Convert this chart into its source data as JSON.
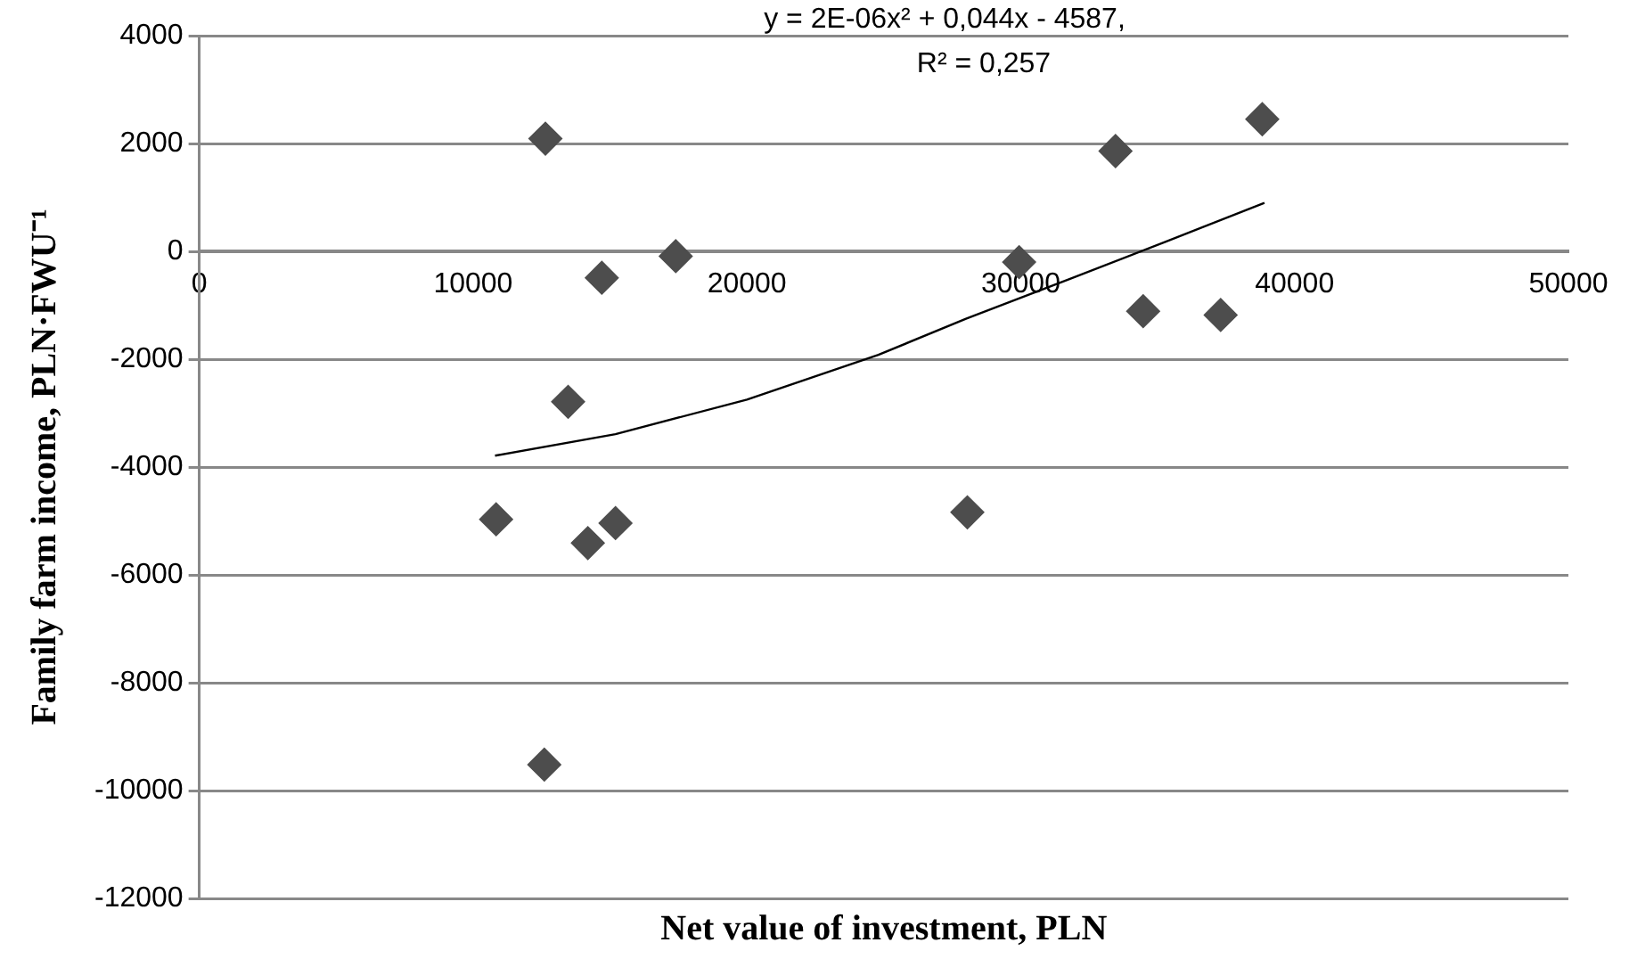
{
  "chart_data": {
    "type": "scatter",
    "xlabel": "Net value of investment, PLN",
    "ylabel": "Family farm income, PLN·FWU⁻¹",
    "annotations": [
      "y = 2E-06x² + 0,044x - 4587,",
      "R² = 0,257"
    ],
    "xlim": [
      0,
      50000
    ],
    "xticks": [
      0,
      10000,
      20000,
      30000,
      40000,
      50000
    ],
    "ylim": [
      -12000,
      4000
    ],
    "yticks": [
      -12000,
      -10000,
      -8000,
      -6000,
      -4000,
      -2000,
      0,
      2000,
      4000
    ],
    "grid": "y",
    "legend": false,
    "marker": "diamond",
    "series": [
      {
        "color": "#4d4d4d",
        "x": [
          12640,
          14700,
          17400,
          13470,
          10840,
          14190,
          15200,
          12600,
          28050,
          29940,
          33460,
          38820,
          34470,
          37300
        ],
        "values": [
          2090,
          -490,
          -90,
          -2790,
          -4970,
          -5410,
          -5040,
          -9520,
          -4840,
          -200,
          1860,
          2450,
          -1110,
          -1180
        ]
      },
      {
        "type": "line",
        "color": "#000000",
        "marker": "none",
        "x": [
          10800,
          15200,
          20000,
          24800,
          28000,
          31800,
          35300,
          38900
        ],
        "values": [
          -3790,
          -3390,
          -2750,
          -1920,
          -1250,
          -510,
          180,
          900
        ]
      }
    ]
  }
}
